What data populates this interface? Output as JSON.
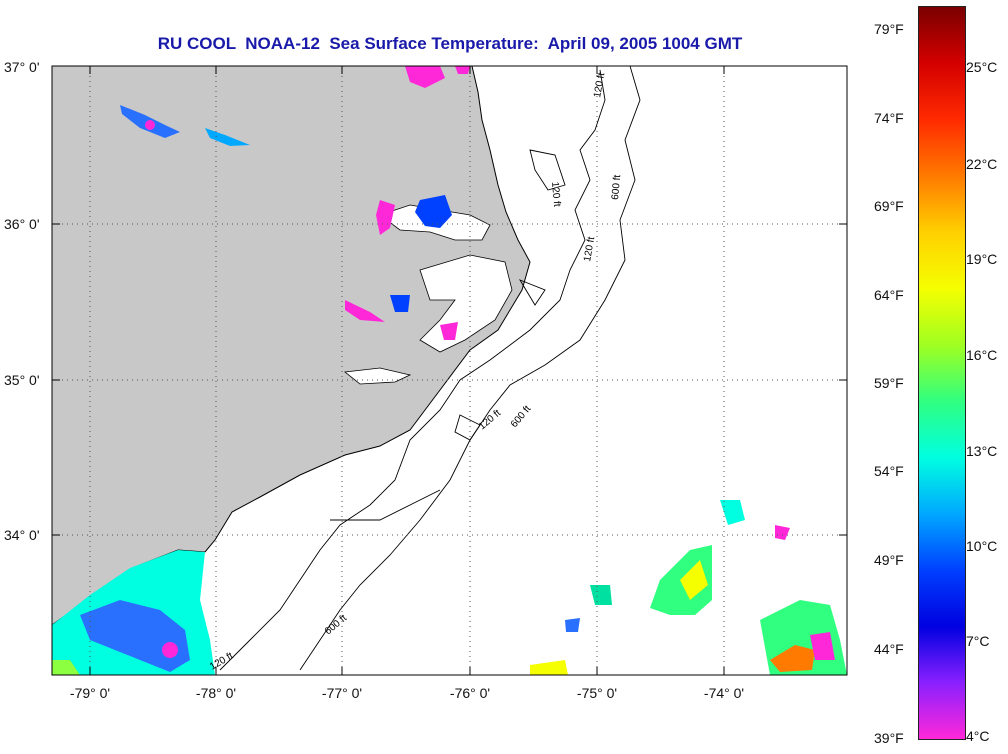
{
  "title": "RU COOL  NOAA-12  Sea Surface Temperature:  April 09, 2005 1004 GMT",
  "lat_labels": [
    "37° 0'",
    "36° 0'",
    "35° 0'",
    "34° 0'"
  ],
  "lon_labels": [
    "-79° 0'",
    "-78° 0'",
    "-77° 0'",
    "-76° 0'",
    "-75° 0'",
    "-74° 0'"
  ],
  "contour_labels": [
    "120 ft",
    "600 ft"
  ],
  "colorbar": {
    "fahrenheit": [
      "79°F",
      "74°F",
      "69°F",
      "64°F",
      "59°F",
      "54°F",
      "49°F",
      "44°F",
      "39°F"
    ],
    "celsius": [
      "25°C",
      "22°C",
      "19°C",
      "16°C",
      "13°C",
      "10°C",
      "7°C",
      "4°C"
    ],
    "gradient_colors": [
      "#7a0000",
      "#d40000",
      "#ff2a00",
      "#ff7a00",
      "#ffd000",
      "#f5ff00",
      "#a0ff20",
      "#30ff80",
      "#00ffe0",
      "#00a8ff",
      "#0040ff",
      "#0000e0",
      "#8a20ff",
      "#ff28d8"
    ]
  },
  "colors": {
    "land": "#c8c8c8",
    "ocean": "#ffffff",
    "title": "#1a1aaa"
  }
}
